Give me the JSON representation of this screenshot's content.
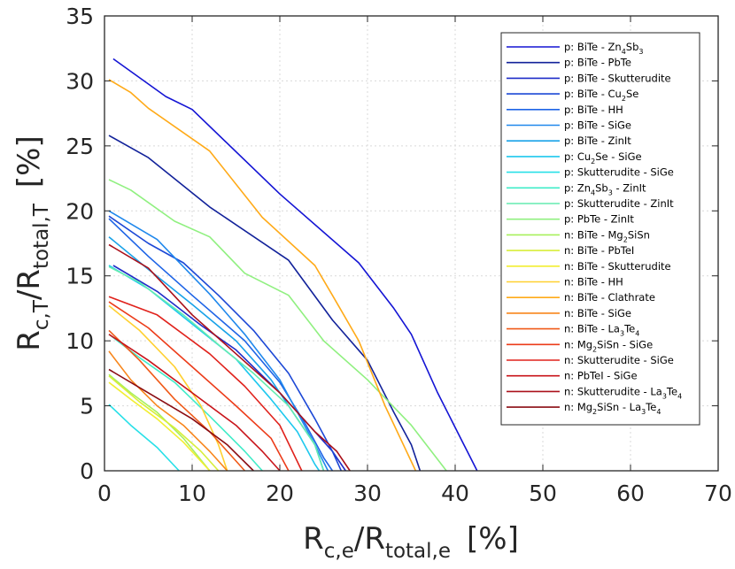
{
  "chart_data": {
    "type": "line",
    "title": "",
    "xlabel": {
      "main": "R",
      "sub": "c,e",
      "mid": "/R",
      "sub2": "total,e",
      "unit": "[%]"
    },
    "ylabel": {
      "main": "R",
      "sub": "c,T",
      "mid": "/R",
      "sub2": "total,T",
      "unit": "[%]"
    },
    "xlim": [
      0,
      70
    ],
    "ylim": [
      0,
      35
    ],
    "xticks": [
      "0",
      "10",
      "20",
      "30",
      "40",
      "50",
      "60",
      "70"
    ],
    "yticks": [
      "0",
      "5",
      "10",
      "15",
      "20",
      "25",
      "30",
      "35"
    ],
    "grid": true,
    "legend_position": "top-right",
    "series": [
      {
        "name": "p: BiTe - Zn4Sb3",
        "label": [
          [
            "p: BiTe - Zn",
            false
          ],
          [
            "4",
            true
          ],
          [
            "Sb",
            false
          ],
          [
            "3",
            true
          ]
        ],
        "color": "#1414d4",
        "points": [
          [
            1,
            31.7
          ],
          [
            7,
            28.8
          ],
          [
            10,
            27.8
          ],
          [
            20,
            21.3
          ],
          [
            29,
            16
          ],
          [
            33,
            12.5
          ],
          [
            35,
            10.5
          ],
          [
            38,
            6
          ],
          [
            41,
            2
          ],
          [
            42.5,
            0
          ]
        ]
      },
      {
        "name": "p: BiTe - PbTe",
        "label": [
          [
            "p: BiTe - PbTe",
            false
          ]
        ],
        "color": "#12229a",
        "points": [
          [
            0.5,
            25.8
          ],
          [
            5,
            24.1
          ],
          [
            12,
            20.3
          ],
          [
            21,
            16.2
          ],
          [
            26,
            11.6
          ],
          [
            30,
            8.5
          ],
          [
            33,
            4.5
          ],
          [
            35,
            2
          ],
          [
            36,
            0
          ]
        ]
      },
      {
        "name": "p: BiTe - Skutterudite",
        "label": [
          [
            "p: BiTe - Skutterudite",
            false
          ]
        ],
        "color": "#1e2cc8",
        "points": [
          [
            1,
            15.8
          ],
          [
            6,
            13.8
          ],
          [
            11,
            11.2
          ],
          [
            15,
            9.3
          ],
          [
            20,
            6
          ],
          [
            24,
            3
          ],
          [
            26,
            1.5
          ],
          [
            27.5,
            0
          ]
        ]
      },
      {
        "name": "p: BiTe - Cu2Se",
        "label": [
          [
            "p: BiTe - Cu",
            false
          ],
          [
            "2",
            true
          ],
          [
            "Se",
            false
          ]
        ],
        "color": "#1c48d6",
        "points": [
          [
            0.5,
            19.6
          ],
          [
            5,
            17.5
          ],
          [
            9,
            16
          ],
          [
            13,
            13.5
          ],
          [
            17,
            10.8
          ],
          [
            21,
            7.5
          ],
          [
            24,
            4
          ],
          [
            26,
            1.5
          ],
          [
            27,
            0
          ]
        ]
      },
      {
        "name": "p: BiTe - HH",
        "label": [
          [
            "p: BiTe - HH",
            false
          ]
        ],
        "color": "#1e64e6",
        "points": [
          [
            0.5,
            19.4
          ],
          [
            5,
            16.5
          ],
          [
            10,
            13.5
          ],
          [
            16,
            10
          ],
          [
            20,
            6.8
          ],
          [
            23,
            3.5
          ],
          [
            25,
            1
          ],
          [
            26,
            0
          ]
        ]
      },
      {
        "name": "p: BiTe - SiGe",
        "label": [
          [
            "p: BiTe - SiGe",
            false
          ]
        ],
        "color": "#2088ec",
        "points": [
          [
            0.5,
            20
          ],
          [
            6,
            17.8
          ],
          [
            12,
            13.6
          ],
          [
            16,
            10.5
          ],
          [
            20,
            7
          ],
          [
            22,
            4.5
          ],
          [
            24,
            2
          ],
          [
            25.5,
            0
          ]
        ]
      },
      {
        "name": "p: BiTe - ZinIt",
        "label": [
          [
            "p: BiTe - ZinIt",
            false
          ]
        ],
        "color": "#18a2e8",
        "points": [
          [
            0.5,
            18
          ],
          [
            5,
            15.5
          ],
          [
            10,
            12.8
          ],
          [
            15,
            10
          ],
          [
            19,
            7
          ],
          [
            22,
            4
          ],
          [
            24,
            2
          ],
          [
            25,
            0
          ]
        ]
      },
      {
        "name": "p: Cu2Se - SiGe",
        "label": [
          [
            "p: Cu",
            false
          ],
          [
            "2",
            true
          ],
          [
            "Se - SiGe",
            false
          ]
        ],
        "color": "#1ec8ee",
        "points": [
          [
            0.5,
            15.8
          ],
          [
            5,
            14
          ],
          [
            10,
            11.3
          ],
          [
            15,
            8.6
          ],
          [
            19,
            5.5
          ],
          [
            22,
            3
          ],
          [
            24,
            0.5
          ],
          [
            24.5,
            0
          ]
        ]
      },
      {
        "name": "p: Skutterudite - SiGe",
        "label": [
          [
            "p: Skutterudite - SiGe",
            false
          ]
        ],
        "color": "#28e0e8",
        "points": [
          [
            0.5,
            5.1
          ],
          [
            3,
            3.5
          ],
          [
            6,
            1.8
          ],
          [
            8.5,
            0
          ]
        ]
      },
      {
        "name": "p: Zn4Sb3 - ZinIt",
        "label": [
          [
            "p: Zn",
            false
          ],
          [
            "4",
            true
          ],
          [
            "Sb",
            false
          ],
          [
            "3",
            true
          ],
          [
            " - ZinIt",
            false
          ]
        ],
        "color": "#40ecc8",
        "points": [
          [
            0.5,
            10.5
          ],
          [
            4,
            8.7
          ],
          [
            8,
            6.8
          ],
          [
            12,
            4.2
          ],
          [
            16,
            1.5
          ],
          [
            18,
            0
          ]
        ]
      },
      {
        "name": "p: Skutterudite - ZinIt",
        "label": [
          [
            "p: Skutterudite - ZinIt",
            false
          ]
        ],
        "color": "#64ecb0",
        "points": [
          [
            0.5,
            15.7
          ],
          [
            4,
            14.5
          ],
          [
            9,
            12
          ],
          [
            13,
            9.7
          ],
          [
            17,
            7.5
          ],
          [
            21,
            5
          ],
          [
            24,
            2
          ],
          [
            25,
            0
          ]
        ]
      },
      {
        "name": "p: PbTe - ZinIt",
        "label": [
          [
            "p: PbTe - ZinIt",
            false
          ]
        ],
        "color": "#90f080",
        "points": [
          [
            0.5,
            22.4
          ],
          [
            3,
            21.6
          ],
          [
            8,
            19.2
          ],
          [
            12,
            18
          ],
          [
            16,
            15.2
          ],
          [
            21,
            13.5
          ],
          [
            25,
            10
          ],
          [
            30,
            7
          ],
          [
            35,
            3.5
          ],
          [
            39,
            0
          ]
        ]
      },
      {
        "name": "n: BiTe - Mg2SiSn",
        "label": [
          [
            "n: BiTe - Mg",
            false
          ],
          [
            "2",
            true
          ],
          [
            "SiSn",
            false
          ]
        ],
        "color": "#a8f05c",
        "points": [
          [
            0.5,
            7.4
          ],
          [
            3,
            6
          ],
          [
            6,
            4.5
          ],
          [
            9,
            2.5
          ],
          [
            12,
            0
          ]
        ]
      },
      {
        "name": "n: BiTe - PbTeI",
        "label": [
          [
            "n: BiTe - PbTeI",
            false
          ]
        ],
        "color": "#d8ee3a",
        "points": [
          [
            0.5,
            7.3
          ],
          [
            4,
            5.3
          ],
          [
            8,
            3.3
          ],
          [
            11,
            1.5
          ],
          [
            13,
            0
          ]
        ]
      },
      {
        "name": "n: BiTe - Skutterudite",
        "label": [
          [
            "n: BiTe - Skutterudite",
            false
          ]
        ],
        "color": "#f2ee32",
        "points": [
          [
            0.5,
            6.8
          ],
          [
            3,
            5.5
          ],
          [
            6,
            4
          ],
          [
            9,
            2.2
          ],
          [
            12,
            0
          ]
        ]
      },
      {
        "name": "n: BiTe - HH",
        "label": [
          [
            "n: BiTe - HH",
            false
          ]
        ],
        "color": "#ffd030",
        "points": [
          [
            0.5,
            12.7
          ],
          [
            4,
            10.8
          ],
          [
            8,
            8
          ],
          [
            11,
            5
          ],
          [
            13,
            2
          ],
          [
            14,
            0
          ]
        ]
      },
      {
        "name": "n: BiTe - Clathrate",
        "label": [
          [
            "n: BiTe - Clathrate",
            false
          ]
        ],
        "color": "#ffaa18",
        "points": [
          [
            0.5,
            30.1
          ],
          [
            3,
            29.1
          ],
          [
            5,
            27.9
          ],
          [
            12,
            24.6
          ],
          [
            18,
            19.5
          ],
          [
            24,
            15.8
          ],
          [
            26,
            13.5
          ],
          [
            29,
            10
          ],
          [
            32,
            5
          ],
          [
            35.5,
            0
          ]
        ]
      },
      {
        "name": "n: BiTe - SiGe",
        "label": [
          [
            "n: BiTe - SiGe",
            false
          ]
        ],
        "color": "#f8861c",
        "points": [
          [
            0.5,
            9.2
          ],
          [
            3,
            7
          ],
          [
            6,
            5
          ],
          [
            9,
            3.5
          ],
          [
            12,
            1.5
          ],
          [
            14,
            0
          ]
        ]
      },
      {
        "name": "n: BiTe - La3Te4",
        "label": [
          [
            "n: BiTe - La",
            false
          ],
          [
            "3",
            true
          ],
          [
            "Te",
            false
          ],
          [
            "4",
            true
          ]
        ],
        "color": "#f05a18",
        "points": [
          [
            0.5,
            10.8
          ],
          [
            4,
            8.5
          ],
          [
            8,
            5.5
          ],
          [
            12,
            3
          ],
          [
            16,
            0
          ]
        ]
      },
      {
        "name": "n: Mg2SiSn - SiGe",
        "label": [
          [
            "n: Mg",
            false
          ],
          [
            "2",
            true
          ],
          [
            "SiSn - SiGe",
            false
          ]
        ],
        "color": "#ec3c1a",
        "points": [
          [
            0.5,
            13
          ],
          [
            5,
            11
          ],
          [
            10,
            8
          ],
          [
            15,
            5
          ],
          [
            19,
            2.5
          ],
          [
            21,
            0
          ]
        ]
      },
      {
        "name": "n: Skutterudite - SiGe",
        "label": [
          [
            "n: Skutterudite - SiGe",
            false
          ]
        ],
        "color": "#e0221c",
        "points": [
          [
            0.5,
            13.4
          ],
          [
            6,
            12
          ],
          [
            12,
            9
          ],
          [
            16,
            6.5
          ],
          [
            20,
            3.5
          ],
          [
            22.5,
            0
          ]
        ]
      },
      {
        "name": "n: PbTeI - SiGe",
        "label": [
          [
            "n: PbTeI - SiGe",
            false
          ]
        ],
        "color": "#c8141a",
        "points": [
          [
            0.5,
            10.5
          ],
          [
            5,
            8.5
          ],
          [
            10,
            6
          ],
          [
            15,
            3.5
          ],
          [
            18,
            1.5
          ],
          [
            20,
            0
          ]
        ]
      },
      {
        "name": "n: Skutterudite - La3Te4",
        "label": [
          [
            "n: Skutterudite - La",
            false
          ],
          [
            "3",
            true
          ],
          [
            "Te",
            false
          ],
          [
            "4",
            true
          ]
        ],
        "color": "#aa101a",
        "points": [
          [
            0.5,
            17.4
          ],
          [
            5,
            15.6
          ],
          [
            10,
            12
          ],
          [
            15,
            9
          ],
          [
            20,
            6
          ],
          [
            24,
            3
          ],
          [
            26.5,
            1.5
          ],
          [
            28,
            0
          ]
        ]
      },
      {
        "name": "n: Mg2SiSn - La3Te4",
        "label": [
          [
            "n: Mg",
            false
          ],
          [
            "2",
            true
          ],
          [
            "SiSn - La",
            false
          ],
          [
            "3",
            true
          ],
          [
            "Te",
            false
          ],
          [
            "4",
            true
          ]
        ],
        "color": "#8a0c12",
        "points": [
          [
            0.5,
            7.8
          ],
          [
            5,
            6
          ],
          [
            10,
            4
          ],
          [
            14,
            2
          ],
          [
            17,
            0
          ]
        ]
      }
    ]
  }
}
